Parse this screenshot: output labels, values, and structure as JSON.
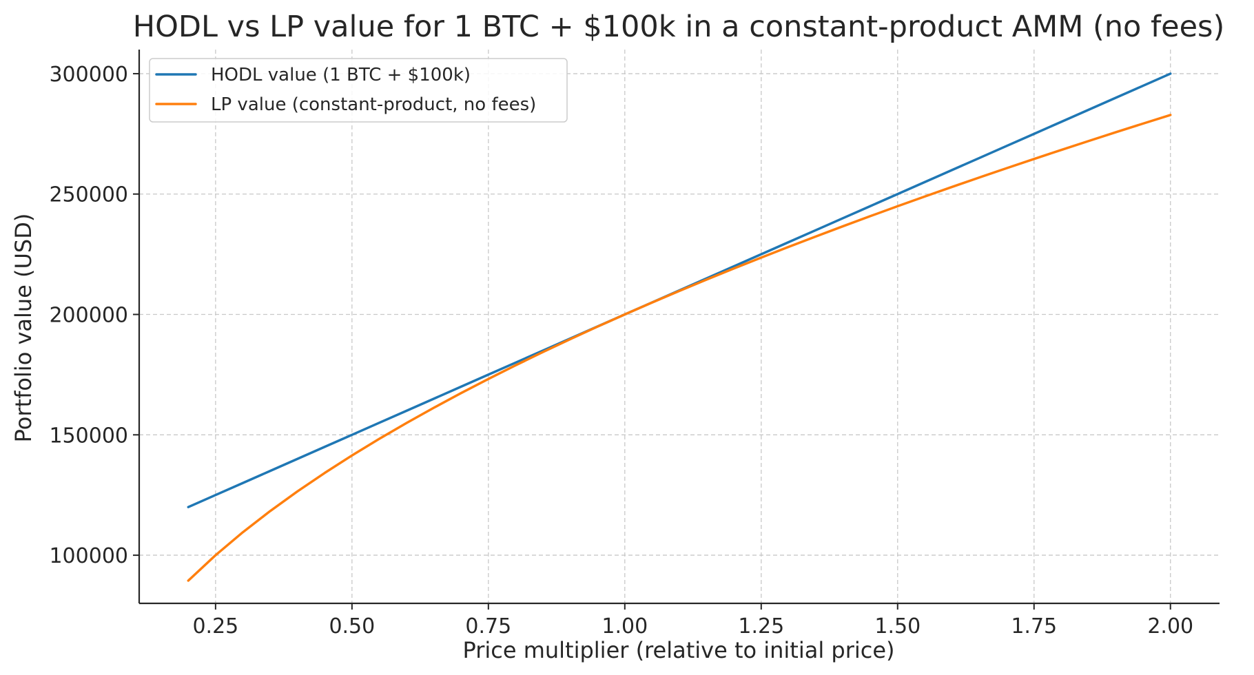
{
  "chart_data": {
    "type": "line",
    "title": "HODL vs LP value for 1 BTC + $100k in a constant-product AMM (no fees)",
    "xlabel": "Price multiplier (relative to initial price)",
    "ylabel": "Portfolio value (USD)",
    "xlim": [
      0.11,
      2.09
    ],
    "ylim": [
      80000,
      310000
    ],
    "xticks": [
      0.25,
      0.5,
      0.75,
      1.0,
      1.25,
      1.5,
      1.75,
      2.0
    ],
    "xtick_labels": [
      "0.25",
      "0.50",
      "0.75",
      "1.00",
      "1.25",
      "1.50",
      "1.75",
      "2.00"
    ],
    "yticks": [
      100000,
      150000,
      200000,
      250000,
      300000
    ],
    "ytick_labels": [
      "100000",
      "150000",
      "200000",
      "250000",
      "300000"
    ],
    "grid": true,
    "legend_position": "top-left",
    "x": [
      0.2,
      0.25,
      0.3,
      0.35,
      0.4,
      0.45,
      0.5,
      0.55,
      0.6,
      0.65,
      0.7,
      0.75,
      0.8,
      0.85,
      0.9,
      0.95,
      1.0,
      1.05,
      1.1,
      1.15,
      1.2,
      1.25,
      1.3,
      1.35,
      1.4,
      1.45,
      1.5,
      1.55,
      1.6,
      1.65,
      1.7,
      1.75,
      1.8,
      1.85,
      1.9,
      1.95,
      2.0
    ],
    "series": [
      {
        "name": "HODL value (1 BTC + $100k)",
        "color": "#1f77b4",
        "values": [
          120000,
          125000,
          130000,
          135000,
          140000,
          145000,
          150000,
          155000,
          160000,
          165000,
          170000,
          175000,
          180000,
          185000,
          190000,
          195000,
          200000,
          205000,
          210000,
          215000,
          220000,
          225000,
          230000,
          235000,
          240000,
          245000,
          250000,
          255000,
          260000,
          265000,
          270000,
          275000,
          280000,
          285000,
          290000,
          295000,
          300000
        ]
      },
      {
        "name": "LP value (constant-product, no fees)",
        "color": "#ff7f0e",
        "values": [
          89443,
          100000,
          109545,
          118322,
          126491,
          134164,
          141421,
          148324,
          154919,
          161245,
          167332,
          173205,
          178885,
          184391,
          189737,
          194936,
          200000,
          204939,
          209762,
          214476,
          219089,
          223607,
          228035,
          232379,
          236643,
          240832,
          244949,
          248998,
          252982,
          256905,
          260768,
          264575,
          268328,
          272029,
          275681,
          279285,
          282843
        ]
      }
    ]
  }
}
